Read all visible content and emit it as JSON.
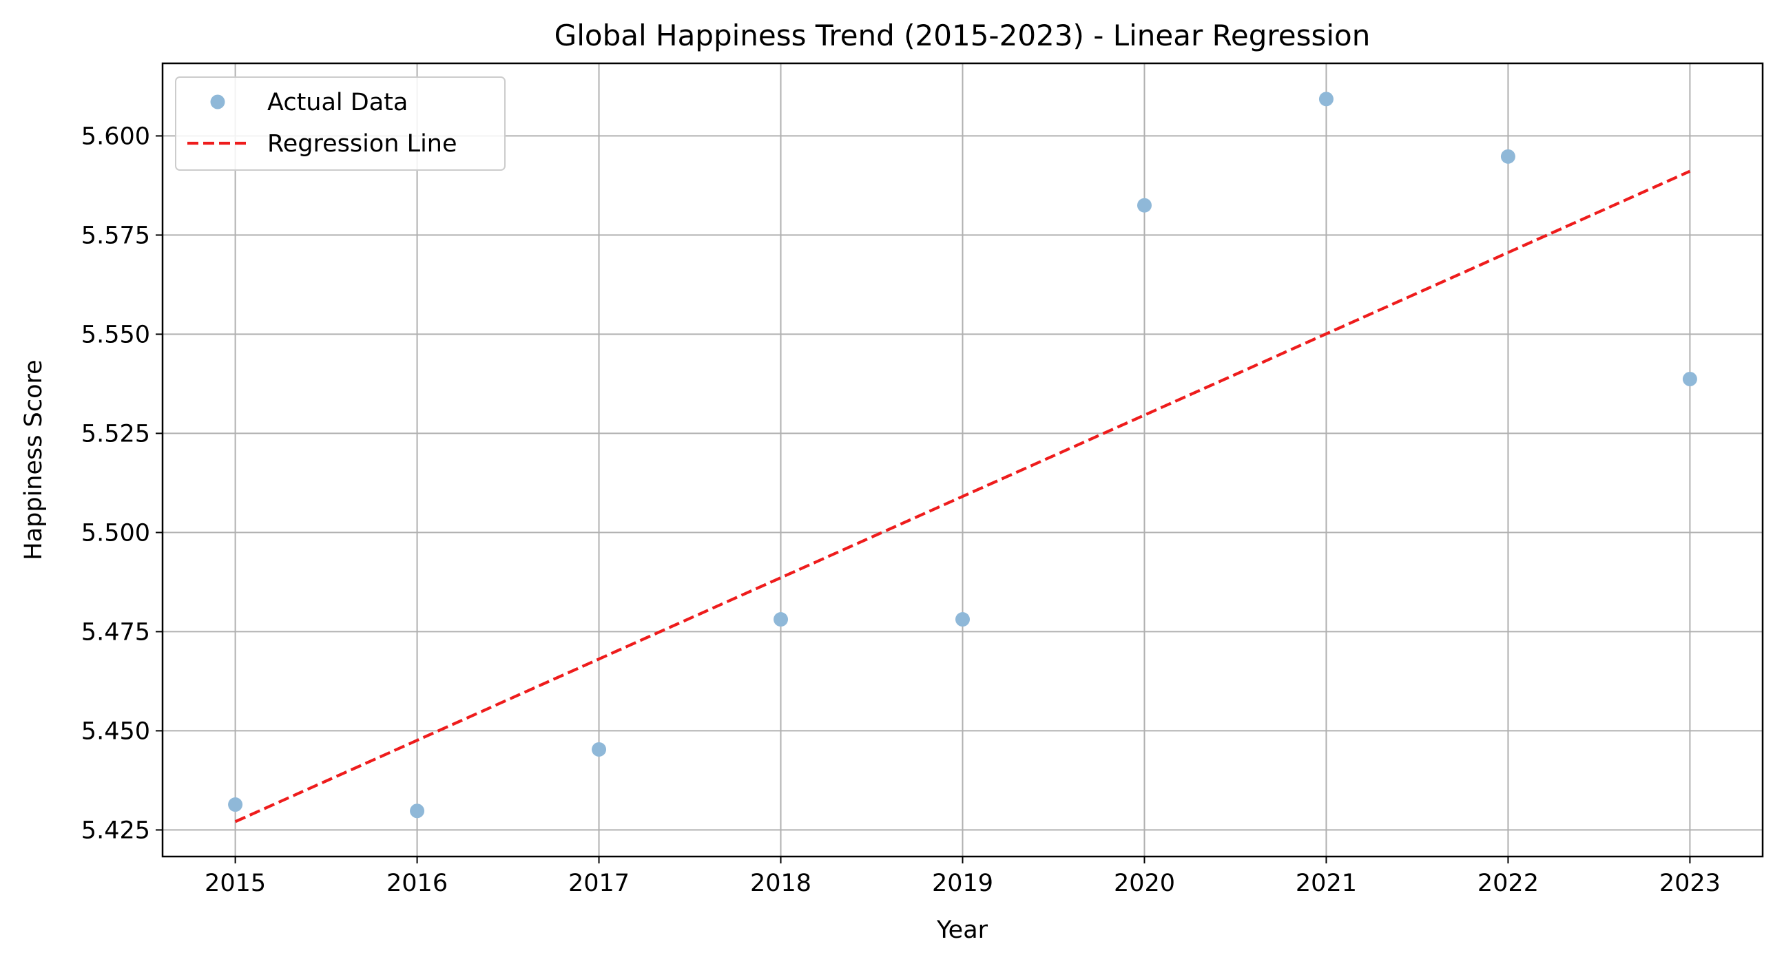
{
  "chart_data": {
    "type": "scatter",
    "title": "Global Happiness Trend (2015-2023) - Linear Regression",
    "xlabel": "Year",
    "ylabel": "Happiness Score",
    "xlim": [
      2014.6,
      2023.4
    ],
    "ylim": [
      5.4183,
      5.6183
    ],
    "x_ticks": [
      2015,
      2016,
      2017,
      2018,
      2019,
      2020,
      2021,
      2022,
      2023
    ],
    "y_ticks": [
      5.425,
      5.45,
      5.475,
      5.5,
      5.525,
      5.55,
      5.575,
      5.6
    ],
    "y_tick_labels": [
      "5.425",
      "5.450",
      "5.475",
      "5.500",
      "5.525",
      "5.550",
      "5.575",
      "5.600"
    ],
    "grid": true,
    "legend_position": "top-left",
    "series": [
      {
        "name": "Actual Data",
        "kind": "scatter",
        "color": "#8fb8d8",
        "x": [
          2015,
          2016,
          2017,
          2018,
          2019,
          2020,
          2021,
          2022,
          2023
        ],
        "y": [
          5.4314,
          5.4298,
          5.4453,
          5.4781,
          5.4781,
          5.5825,
          5.6093,
          5.5948,
          5.5387
        ]
      },
      {
        "name": "Regression Line",
        "kind": "line",
        "style": "dashed",
        "color": "#ee1c1c",
        "x": [
          2015,
          2023
        ],
        "y": [
          5.4271,
          5.5911
        ]
      }
    ]
  }
}
